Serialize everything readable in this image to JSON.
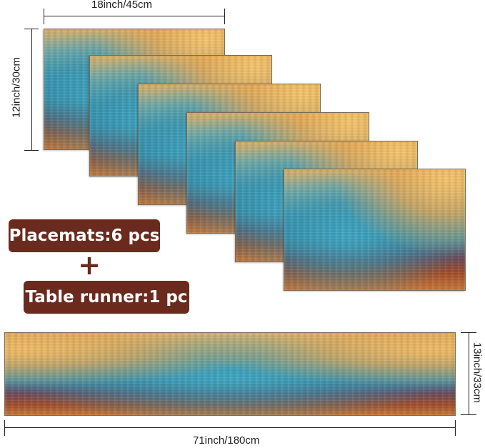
{
  "placemat_width_label": "18inch/45cm",
  "placemat_height_label": "12inch/30cm",
  "placemats_label": "Placemats:6 pcs",
  "plus_symbol": "+",
  "runner_label": "Table runner:1 pc",
  "runner_height_label": "13inch/33cm",
  "runner_width_label": "71inch/180cm",
  "colors": {
    "label_background": "#6a2a1d",
    "label_text": "#ffffff",
    "dimension_lines": "#222222"
  }
}
